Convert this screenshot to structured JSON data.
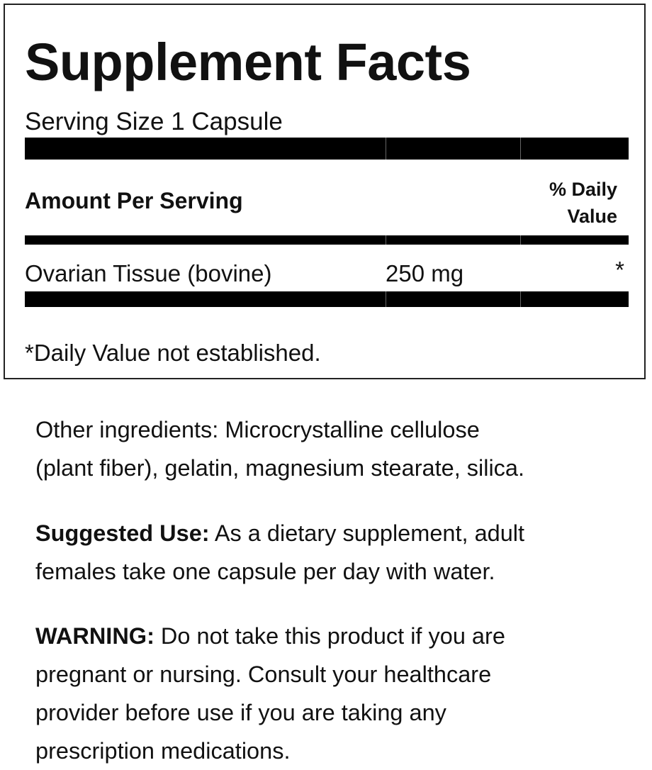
{
  "label": {
    "title": "Supplement Facts",
    "serving_size": "Serving Size 1 Capsule",
    "amount_header": "Amount Per Serving",
    "daily_value_header_line1": "% Daily",
    "daily_value_header_line2": "Value",
    "rows": [
      {
        "name": "Ovarian Tissue (bovine)",
        "amount": "250 mg",
        "daily_value": "*"
      }
    ],
    "footnote": "*Daily Value not established."
  },
  "other_ingredients": {
    "line1": "Other ingredients: Microcrystalline cellulose",
    "line2": "(plant fiber), gelatin, magnesium stearate, silica."
  },
  "suggested_use": {
    "label": "Suggested Use:",
    "line1_rest": " As a dietary supplement, adult",
    "line2": "females take one capsule per day with water."
  },
  "warning": {
    "label": "WARNING:",
    "line1_rest": " Do not take this product if you are",
    "line2": "pregnant or nursing. Consult your healthcare",
    "line3": "provider before use if you are taking any",
    "line4": "prescription medications."
  }
}
